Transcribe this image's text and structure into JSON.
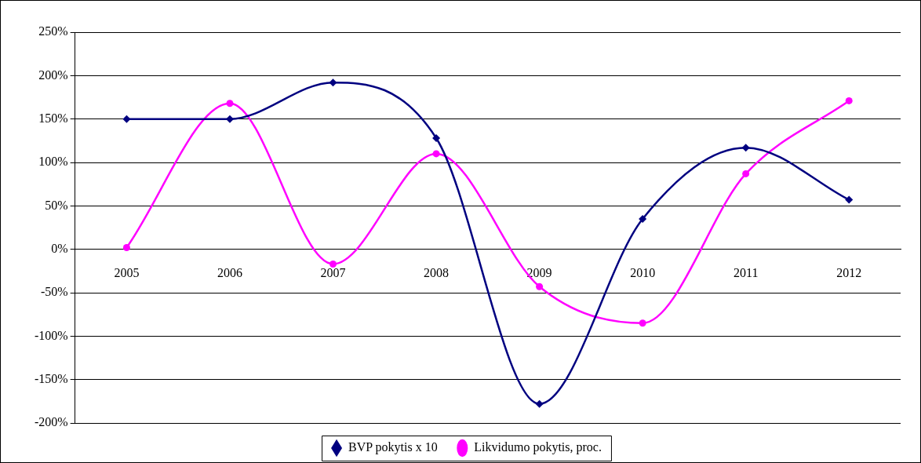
{
  "chart_data": {
    "type": "line",
    "categories": [
      "2005",
      "2006",
      "2007",
      "2008",
      "2009",
      "2010",
      "2011",
      "2012"
    ],
    "series": [
      {
        "name": "BVP pokytis x 10",
        "color": "#000080",
        "marker": "diamond",
        "values": [
          150,
          150,
          192,
          128,
          -178,
          35,
          117,
          57
        ]
      },
      {
        "name": "Likvidumo pokytis, proc.",
        "color": "#ff00ff",
        "marker": "circle",
        "values": [
          2,
          168,
          -17,
          110,
          -43,
          -85,
          87,
          171
        ]
      }
    ],
    "ylim": [
      -200,
      250
    ],
    "yticks": [
      {
        "value": -200,
        "label": "-200%"
      },
      {
        "value": -150,
        "label": "-150%"
      },
      {
        "value": -100,
        "label": "-100%"
      },
      {
        "value": -50,
        "label": "-50%"
      },
      {
        "value": 0,
        "label": "0%"
      },
      {
        "value": 50,
        "label": "50%"
      },
      {
        "value": 100,
        "label": "100%"
      },
      {
        "value": 150,
        "label": "150%"
      },
      {
        "value": 200,
        "label": "200%"
      },
      {
        "value": 250,
        "label": "250%"
      }
    ],
    "grid": "y",
    "legend": "bottom",
    "line_style": "solid"
  }
}
